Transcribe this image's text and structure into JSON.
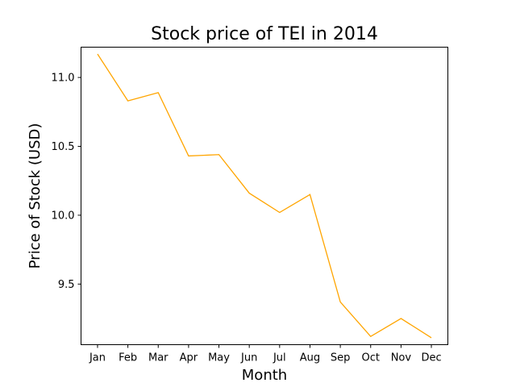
{
  "chart_data": {
    "type": "line",
    "title": "Stock price of TEI in 2014",
    "xlabel": "Month",
    "ylabel": "Price of Stock (USD)",
    "categories": [
      "Jan",
      "Feb",
      "Mar",
      "Apr",
      "May",
      "Jun",
      "Jul",
      "Aug",
      "Sep",
      "Oct",
      "Nov",
      "Dec"
    ],
    "series": [
      {
        "values": [
          11.17,
          10.83,
          10.89,
          10.43,
          10.44,
          10.16,
          10.02,
          10.15,
          9.37,
          9.12,
          9.25,
          9.11
        ],
        "color": "#FFA500"
      }
    ],
    "yticks": [
      9.5,
      10.0,
      10.5,
      11.0
    ],
    "ytick_labels": [
      "9.5",
      "10.0",
      "10.5",
      "11.0"
    ],
    "ylim": [
      9.06,
      11.22
    ],
    "grid": false,
    "legend": "none"
  }
}
